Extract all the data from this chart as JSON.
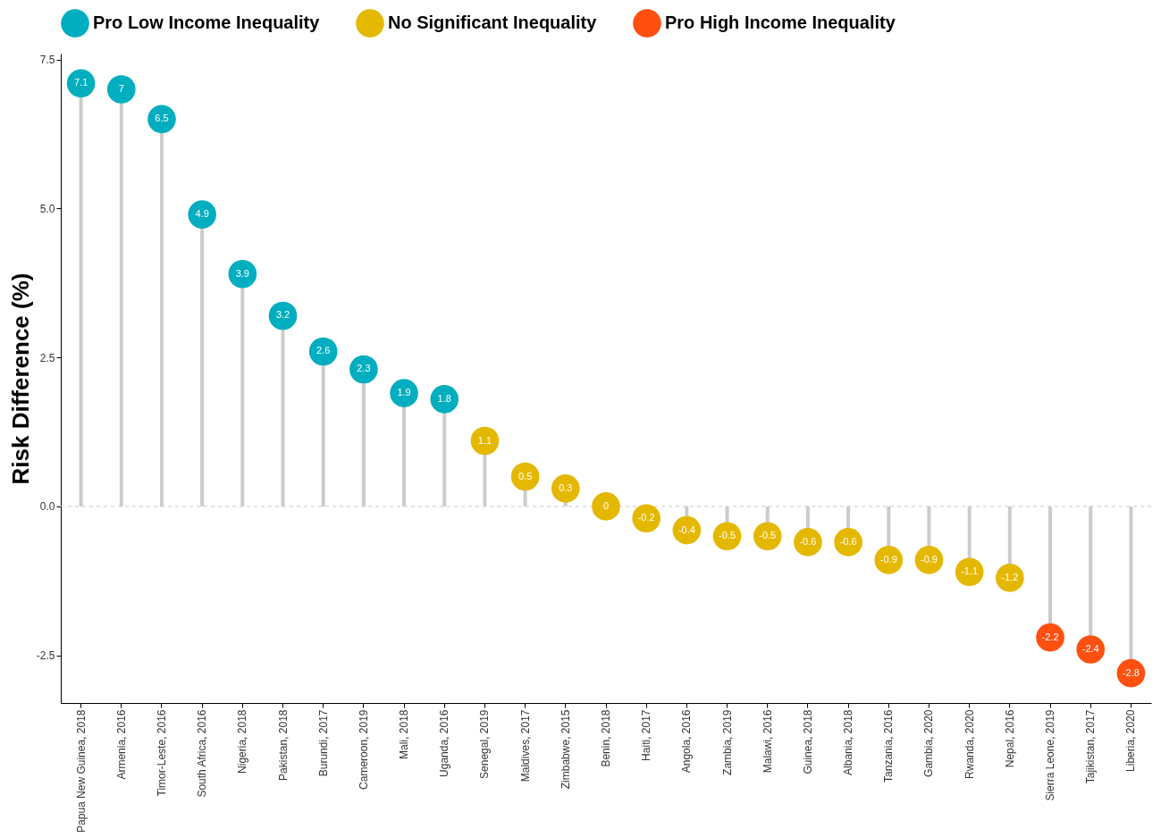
{
  "chart_data": {
    "type": "lollipop",
    "ylabel": "Risk Difference (%)",
    "categories": [
      "Papua New Guinea, 2018",
      "Armenia, 2016",
      "Timor-Leste, 2016",
      "South Africa, 2016",
      "Nigeria, 2018",
      "Pakistan, 2018",
      "Burundi, 2017",
      "Cameroon, 2019",
      "Mali, 2018",
      "Uganda, 2016",
      "Senegal, 2019",
      "Maldives, 2017",
      "Zimbabwe, 2015",
      "Benin, 2018",
      "Haiti, 2017",
      "Angola, 2016",
      "Zambia, 2019",
      "Malawi, 2016",
      "Guinea, 2018",
      "Albania, 2018",
      "Tanzania, 2016",
      "Gambia, 2020",
      "Rwanda, 2020",
      "Nepal, 2016",
      "Sierra Leone, 2019",
      "Tajikistan, 2017",
      "Liberia, 2020"
    ],
    "series": [
      {
        "name": "Pro Low Income Inequality",
        "color": "#00aebf",
        "values": [
          7.1,
          7,
          6.5,
          4.9,
          3.9,
          3.2,
          2.6,
          2.3,
          1.9,
          1.8,
          null,
          null,
          null,
          null,
          null,
          null,
          null,
          null,
          null,
          null,
          null,
          null,
          null,
          null,
          null,
          null,
          null
        ]
      },
      {
        "name": "No Significant Inequality",
        "color": "#e5b800",
        "values": [
          null,
          null,
          null,
          null,
          null,
          null,
          null,
          null,
          null,
          null,
          1.1,
          0.5,
          0.3,
          0,
          -0.2,
          -0.4,
          -0.5,
          -0.5,
          -0.6,
          -0.6,
          -0.9,
          -0.9,
          -1.1,
          -1.2,
          null,
          null,
          null
        ]
      },
      {
        "name": "Pro High Income Inequality",
        "color": "#ff5010",
        "values": [
          null,
          null,
          null,
          null,
          null,
          null,
          null,
          null,
          null,
          null,
          null,
          null,
          null,
          null,
          null,
          null,
          null,
          null,
          null,
          null,
          null,
          null,
          null,
          null,
          -2.2,
          -2.4,
          -2.8
        ]
      }
    ],
    "ylim": [
      -3.3,
      7.6
    ],
    "yticks": [
      {
        "value": -2.5,
        "label": "-2.5"
      },
      {
        "value": 0,
        "label": "0.0"
      },
      {
        "value": 2.5,
        "label": "2.5"
      },
      {
        "value": 5,
        "label": "5.0"
      },
      {
        "value": 7.5,
        "label": "7.5"
      }
    ],
    "ref_lines": [
      {
        "axis": "y",
        "value": 0,
        "line_style": "dashed",
        "color": "#cccccc"
      }
    ],
    "data_labels": true,
    "grid": false,
    "legend": "top",
    "marker": "circle"
  }
}
